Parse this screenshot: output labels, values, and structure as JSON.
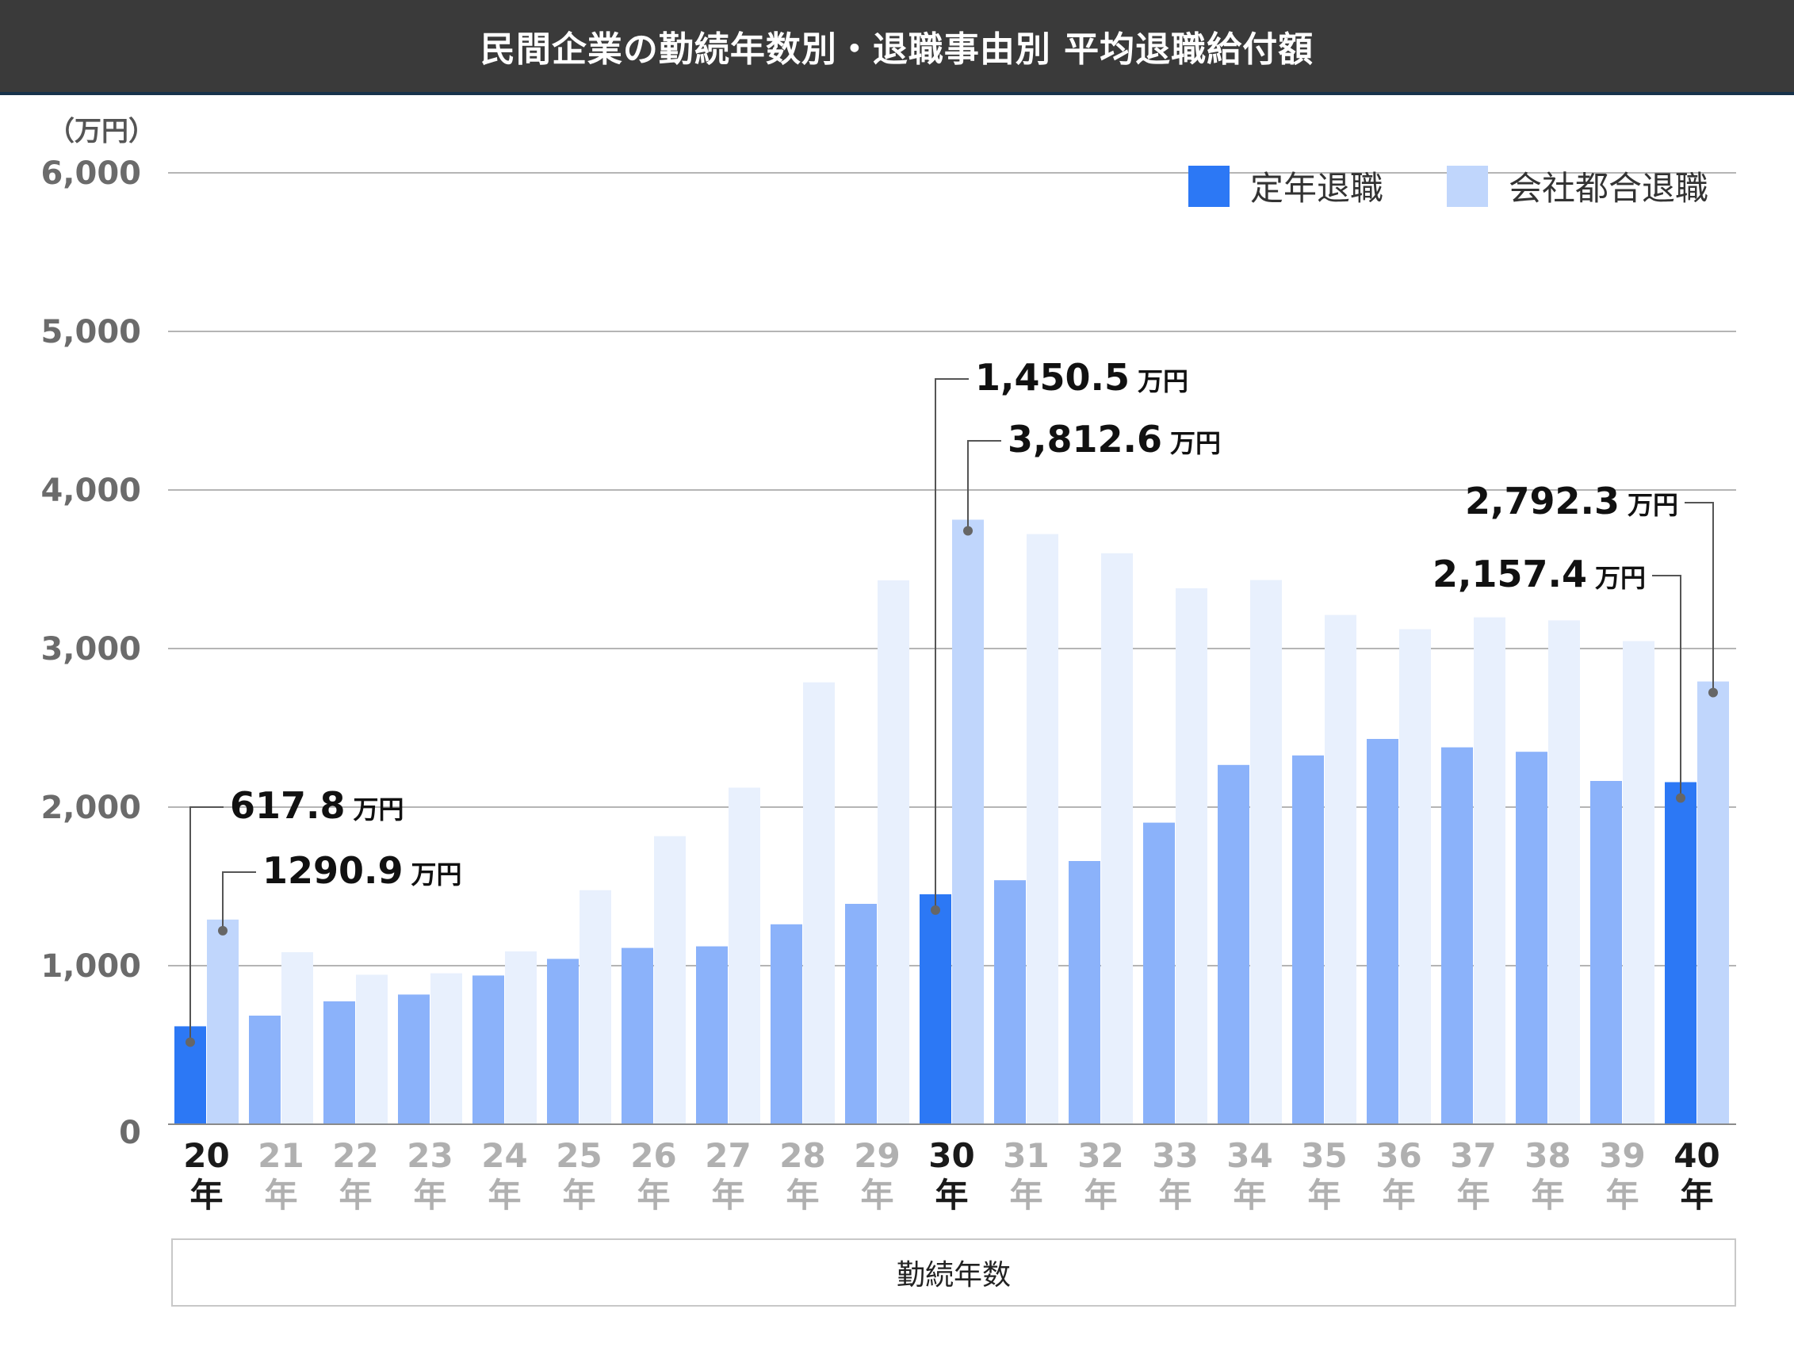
{
  "title": "民間企業の勤続年数別・退職事由別 平均退職給付額",
  "unit_label": "（万円）",
  "chart_data": {
    "type": "bar",
    "title": "民間企業の勤続年数別・退職事由別 平均退職給付額",
    "xlabel": "勤続年数",
    "ylabel": "（万円）",
    "ylim": [
      0,
      6000
    ],
    "yticks": [
      0,
      1000,
      2000,
      3000,
      4000,
      5000,
      6000
    ],
    "ytick_labels": [
      "0",
      "1,000",
      "2,000",
      "3,000",
      "4,000",
      "5,000",
      "6,000"
    ],
    "grid": true,
    "legend_position": "top-right",
    "categories": [
      "20",
      "21",
      "22",
      "23",
      "24",
      "25",
      "26",
      "27",
      "28",
      "29",
      "30",
      "31",
      "32",
      "33",
      "34",
      "35",
      "36",
      "37",
      "38",
      "39",
      "40"
    ],
    "category_suffix": "年",
    "highlight_categories": [
      "20",
      "30",
      "40"
    ],
    "series": [
      {
        "name": "定年退職",
        "values": [
          617.8,
          685,
          775,
          818,
          938,
          1043,
          1112,
          1122,
          1261,
          1390,
          1450.5,
          1539,
          1660,
          1902,
          2266,
          2326,
          2430,
          2377,
          2349,
          2165,
          2157.4
        ],
        "color": "#2c78f5",
        "muted_color": "#8bb2fa"
      },
      {
        "name": "会社都合退職",
        "values": [
          1290.9,
          1085,
          943,
          952,
          1090,
          1476,
          1817,
          2123,
          2787,
          3430,
          3812.6,
          3722,
          3601,
          3380,
          3432,
          3212,
          3122,
          3197,
          3178,
          3047,
          2792.3
        ],
        "color": "#c0d6fc",
        "muted_color": "#e8f0fd"
      }
    ],
    "annotations": [
      {
        "category": "20",
        "series": 0,
        "value_text": "617.8",
        "unit_text": "万円"
      },
      {
        "category": "20",
        "series": 1,
        "value_text": "1290.9",
        "unit_text": "万円"
      },
      {
        "category": "30",
        "series": 0,
        "value_text": "1,450.5",
        "unit_text": "万円"
      },
      {
        "category": "30",
        "series": 1,
        "value_text": "3,812.6",
        "unit_text": "万円"
      },
      {
        "category": "40",
        "series": 0,
        "value_text": "2,157.4",
        "unit_text": "万円"
      },
      {
        "category": "40",
        "series": 1,
        "value_text": "2,792.3",
        "unit_text": "万円"
      }
    ]
  }
}
